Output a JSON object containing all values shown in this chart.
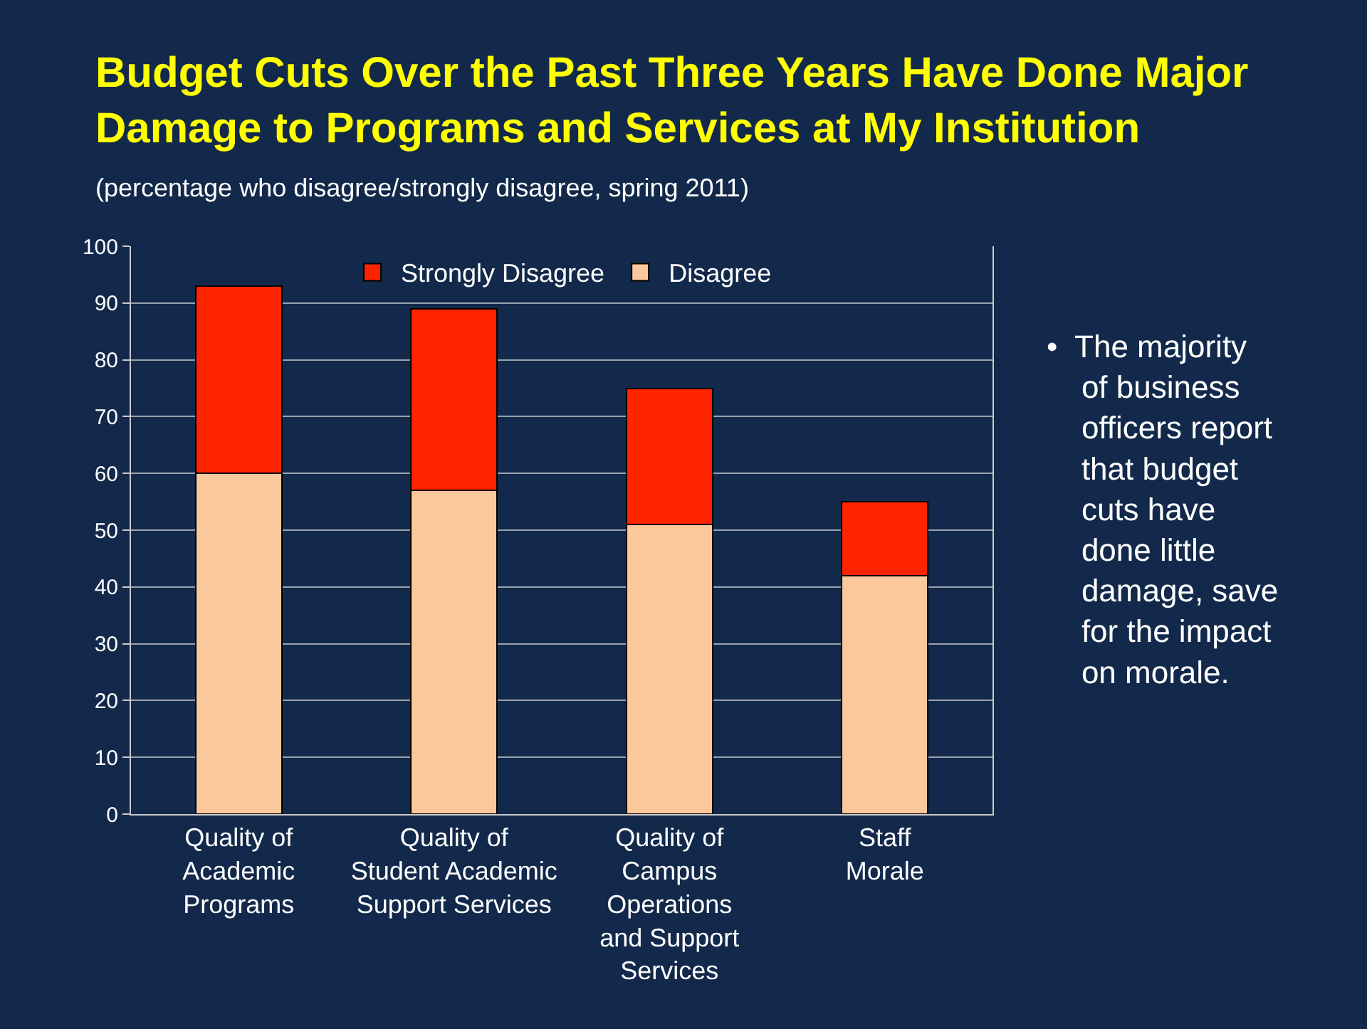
{
  "chart_data": {
    "type": "bar",
    "stacked": true,
    "title": "Budget Cuts Over the Past Three Years Have Done Major\nDamage to Programs and Services at My Institution",
    "subtitle": "(percentage who disagree/strongly disagree, spring 2011)",
    "categories": [
      "Quality of\nAcademic\nPrograms",
      "Quality of\nStudent Academic\nSupport Services",
      "Quality of\nCampus\nOperations\nand Support\nServices",
      "Staff\nMorale"
    ],
    "series": [
      {
        "name": "Disagree",
        "color": "#fbc89c",
        "values": [
          60,
          57,
          51,
          42
        ]
      },
      {
        "name": "Strongly Disagree",
        "color": "#ff2400",
        "values": [
          33,
          32,
          24,
          13
        ]
      }
    ],
    "ylim": [
      0,
      100
    ],
    "yticks": [
      0,
      10,
      20,
      30,
      40,
      50,
      60,
      70,
      80,
      90,
      100
    ],
    "grid": "y",
    "legend": "top",
    "annotations": [
      "•  The majority\n    of business\n    officers report\n    that budget\n    cuts have\n    done little\n    damage, save\n    for the impact\n    on morale."
    ]
  }
}
